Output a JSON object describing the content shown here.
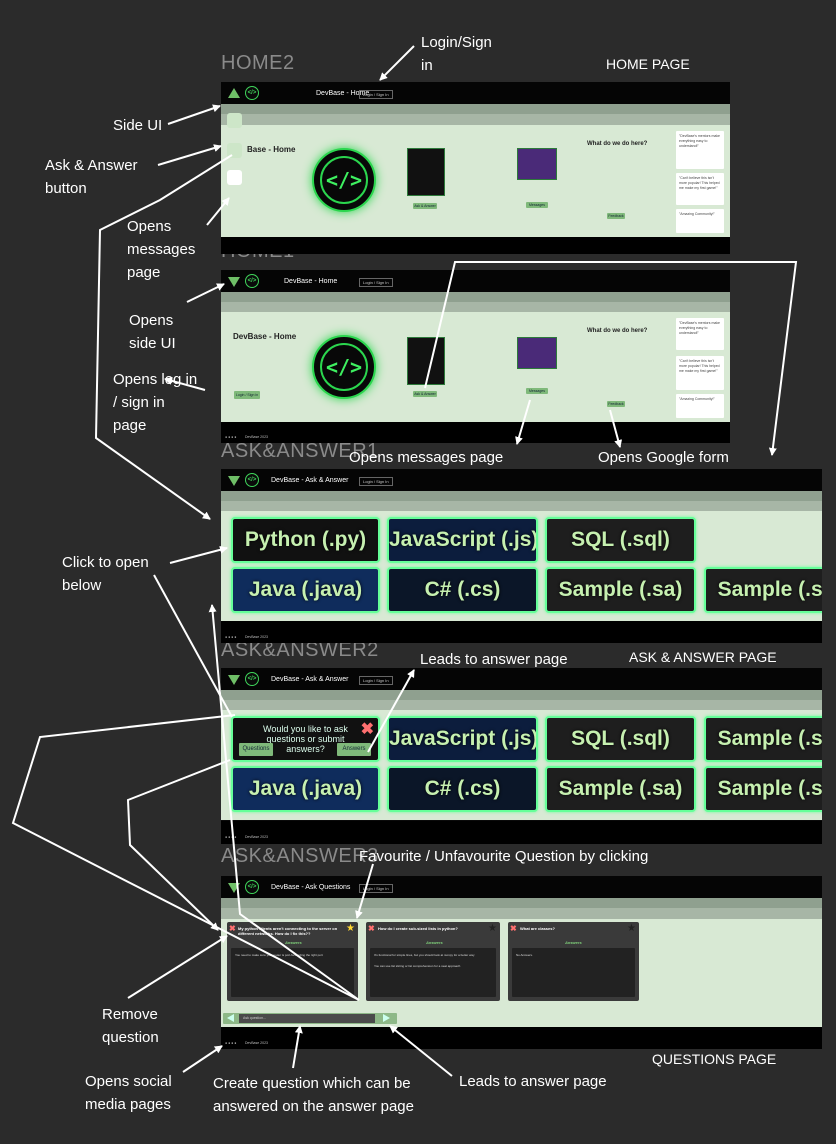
{
  "frames": {
    "home2": "HOME2",
    "home1": "HOME1",
    "aa1": "ASK&ANSWER1",
    "aa2": "ASK&ANSWER2",
    "aa3": "ASK&ANSWER3"
  },
  "page_titles": {
    "home": "HOME PAGE",
    "ask_answer": "ASK & ANSWER PAGE",
    "questions": "QUESTIONS PAGE"
  },
  "annotations": {
    "login_sign_in": "Login/Sign in",
    "side_ui": "Side UI",
    "ask_answer_button": "Ask & Answer button",
    "opens_messages_page_a": "Opens messages page",
    "opens_side_ui": "Opens side UI",
    "opens_log_in": "Opens log in / sign in page",
    "opens_messages_page_b": "Opens messages page",
    "opens_google_form": "Opens Google form",
    "click_to_open_below": "Click to open below",
    "leads_to_answer_page_a": "Leads to answer page",
    "favourite": "Favourite / Unfavourite Question by clicking",
    "remove_question": "Remove question",
    "opens_social_media": "Opens social media pages",
    "create_question": "Create question which can be answered on the answer page",
    "leads_to_answer_page_b": "Leads to answer page"
  },
  "app": {
    "title_home": "DevBase - Home",
    "title_ask": "DevBase - Ask & Answer",
    "title_questions": "DevBase - Ask Questions",
    "login": "Login / Sign In",
    "home_heading": "DevBase - Home",
    "home_heading_cut": "Base - Home",
    "what_we_do": "What do we do here?",
    "footer": "DevBase 2023",
    "logo_glyph": "</>",
    "btn_login": "Login / Sign in",
    "btn_ask": "Ask & Answer",
    "btn_messages": "Messages",
    "btn_feedback": "Feedback",
    "reviews": [
      "\"DevBase's mentors make everything easy to understand!\"",
      "\"Can't believe this isn't more popular! This helped me make my first game!\"",
      "\"Amazing Community!\""
    ]
  },
  "languages": {
    "python": "Python (.py)",
    "javascript": "JavaScript (.js)",
    "sql": "SQL (.sql)",
    "java": "Java (.java)",
    "csharp": "C# (.cs)",
    "sample": "Sample (.sa)"
  },
  "popup": {
    "question": "Would you like to ask questions or submit answers?",
    "questions_btn": "Questions",
    "answers_btn": "Answers"
  },
  "questions": {
    "answers_label": "Answers",
    "q1": "My python clients aren't connecting to the server on different networks. How do I fix this??",
    "q2": "How do I create sub-sized lists in python?",
    "q3": "What are classes?",
    "a1": "You need to make sure your router is port-forwarding the right port",
    "a2a": "It's functional for simple lines, but you should look at numpy for a better way",
    "a2b": "You can use list slicing or list comprehension for a neat approach",
    "a3": "No Answers.",
    "input_placeholder": "Ask question..."
  },
  "colors": {
    "background": "#2b2b2b",
    "accent": "#3fd45a",
    "content_bg": "#d8e9d4",
    "star": "#ffd633"
  }
}
